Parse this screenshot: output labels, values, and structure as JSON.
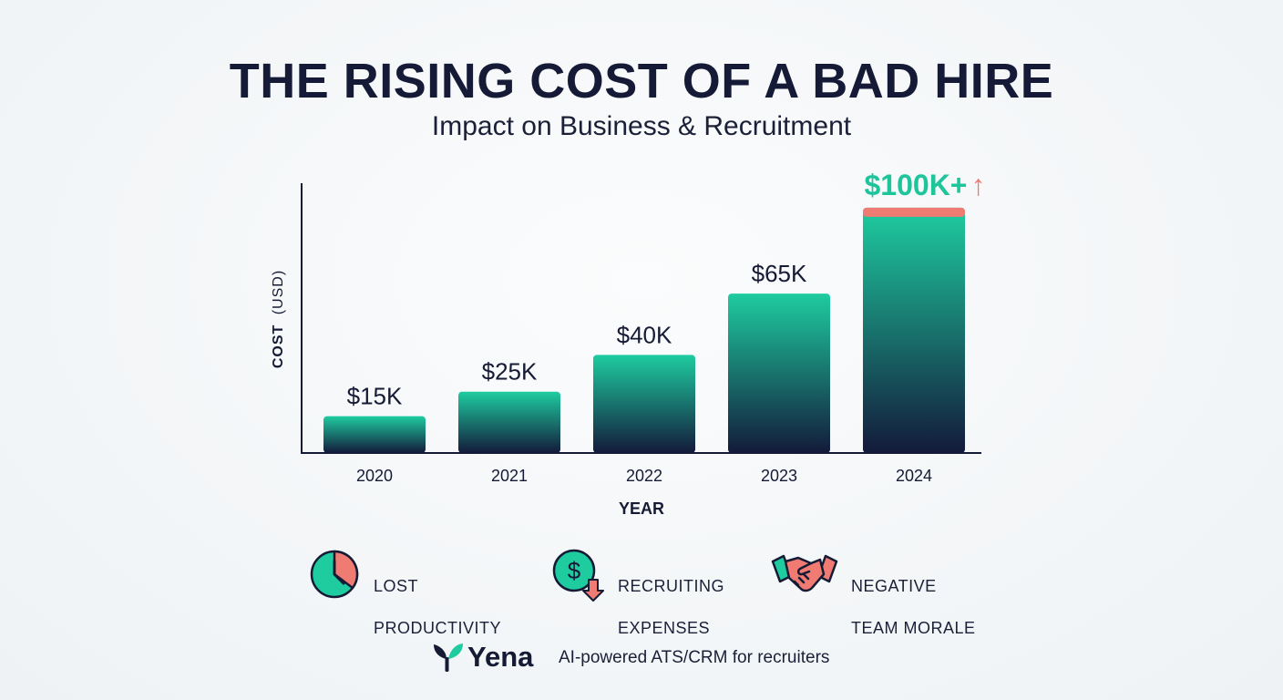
{
  "header": {
    "title": "THE RISING COST OF A BAD HIRE",
    "subtitle": "Impact on Business & Recruitment"
  },
  "chart_data": {
    "type": "bar",
    "categories": [
      "2020",
      "2021",
      "2022",
      "2023",
      "2024"
    ],
    "values": [
      15,
      25,
      40,
      65,
      100
    ],
    "value_labels": [
      "$15K",
      "$25K",
      "$40K",
      "$65K",
      "$100K+"
    ],
    "highlight_arrow": "↑",
    "xlabel": "YEAR",
    "ylabel_bold": "COST",
    "ylabel_unit": "(USD)",
    "ylim": [
      0,
      110
    ],
    "grid": false,
    "colors": {
      "bar_top": "#1ecca0",
      "bar_bottom": "#131a3a",
      "highlight": "#f07b72",
      "highlight_label": "#1ec49a",
      "axis": "#161b35"
    }
  },
  "legend": [
    {
      "icon": "clock-icon",
      "line1": "LOST",
      "line2": "PRODUCTIVITY"
    },
    {
      "icon": "dollar-down-icon",
      "line1": "RECRUITING",
      "line2": "EXPENSES"
    },
    {
      "icon": "handshake-icon",
      "line1": "NEGATIVE",
      "line2": "TEAM MORALE"
    }
  ],
  "footer": {
    "brand": "Yena",
    "tagline": "AI-powered ATS/CRM for recruiters",
    "logo_icon": "yena-leaf-logo"
  }
}
